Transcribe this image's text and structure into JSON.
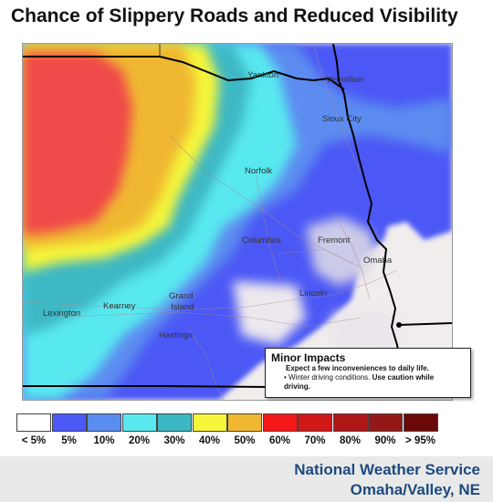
{
  "title": "Chance of Slippery Roads and Reduced Visibility",
  "map": {
    "cities": [
      {
        "name": "Yankton"
      },
      {
        "name": "Vermillion"
      },
      {
        "name": "Sioux City"
      },
      {
        "name": "Norfolk"
      },
      {
        "name": "Columbus"
      },
      {
        "name": "Fremont"
      },
      {
        "name": "Omaha"
      },
      {
        "name": "Lincoln"
      },
      {
        "name": "Grand"
      },
      {
        "name": "Island"
      },
      {
        "name": "Kearney"
      },
      {
        "name": "Lexington"
      },
      {
        "name": "Hastings"
      }
    ]
  },
  "impact": {
    "title": "Minor Impacts",
    "line1": "Expect a few inconveniences to daily life.",
    "line2a": "• Winter driving conditions. ",
    "line2b": "Use caution while",
    "line3": "driving."
  },
  "legend": {
    "items": [
      {
        "label": "< 5%",
        "color": "#ffffff"
      },
      {
        "label": "5%",
        "color": "#4b59f5"
      },
      {
        "label": "10%",
        "color": "#5b8cf0"
      },
      {
        "label": "20%",
        "color": "#59e8f0"
      },
      {
        "label": "30%",
        "color": "#3cb8c4"
      },
      {
        "label": "40%",
        "color": "#f5f53a"
      },
      {
        "label": "50%",
        "color": "#f0b830"
      },
      {
        "label": "60%",
        "color": "#f51818"
      },
      {
        "label": "70%",
        "color": "#d01818"
      },
      {
        "label": "80%",
        "color": "#b01818"
      },
      {
        "label": "90%",
        "color": "#951818"
      },
      {
        "label": "> 95%",
        "color": "#6b0808"
      }
    ]
  },
  "footer": {
    "line1": "National Weather Service",
    "line2": "Omaha/Valley, NE"
  }
}
